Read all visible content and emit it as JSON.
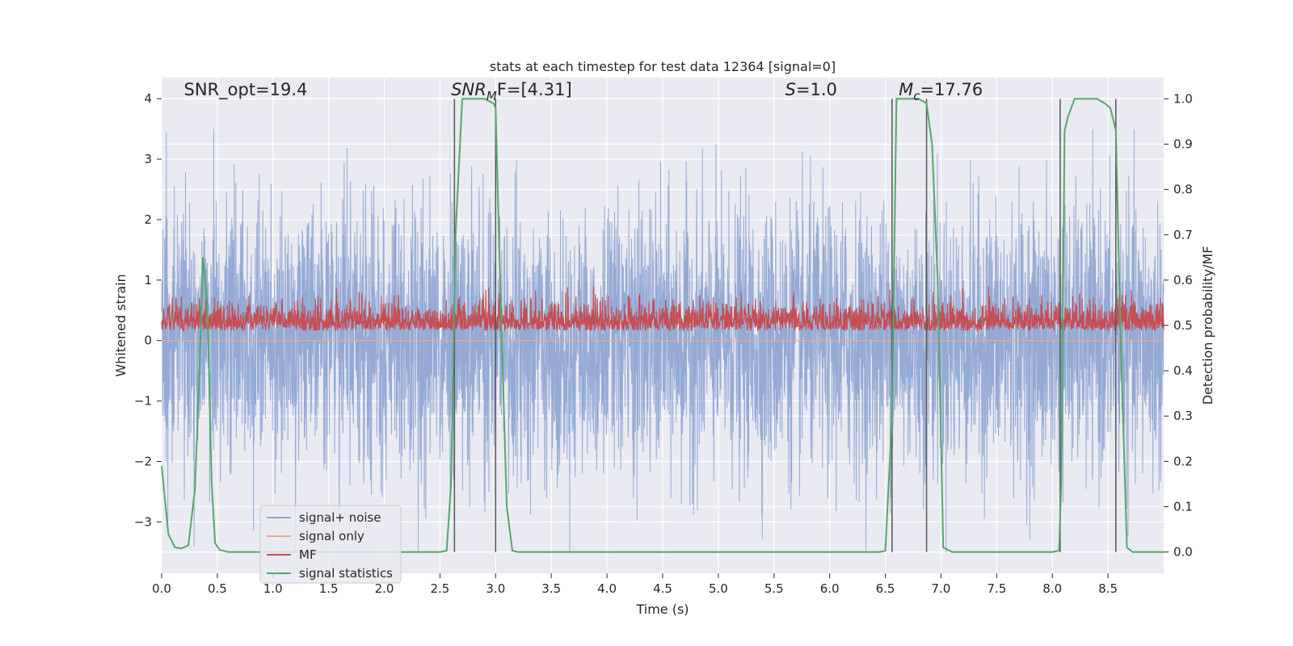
{
  "chart_data": {
    "type": "line",
    "title": "stats at each timestep for test data 12364 [signal=0]",
    "xlabel": "Time (s)",
    "ylabel": "Whitened strain",
    "y2label": "Detection probability/MF",
    "xlim": [
      0.0,
      9.0
    ],
    "ylim": [
      -3.85,
      4.35
    ],
    "y2lim": [
      -0.047,
      1.047
    ],
    "xticks": [
      0.0,
      0.5,
      1.0,
      1.5,
      2.0,
      2.5,
      3.0,
      3.5,
      4.0,
      4.5,
      5.0,
      5.5,
      6.0,
      6.5,
      7.0,
      7.5,
      8.0,
      8.5
    ],
    "xtick_labels": [
      "0.0",
      "0.5",
      "1.0",
      "1.5",
      "2.0",
      "2.5",
      "3.0",
      "3.5",
      "4.0",
      "4.5",
      "5.0",
      "5.5",
      "6.0",
      "6.5",
      "7.0",
      "7.5",
      "8.0",
      "8.5"
    ],
    "yticks": [
      -3,
      -2,
      -1,
      0,
      1,
      2,
      3,
      4
    ],
    "ytick_labels": [
      "−3",
      "−2",
      "−1",
      "0",
      "1",
      "2",
      "3",
      "4"
    ],
    "y2ticks": [
      0.0,
      0.1,
      0.2,
      0.3,
      0.4,
      0.5,
      0.6,
      0.7,
      0.8,
      0.9,
      1.0
    ],
    "y2tick_labels": [
      "0.0",
      "0.1",
      "0.2",
      "0.3",
      "0.4",
      "0.5",
      "0.6",
      "0.7",
      "0.8",
      "0.9",
      "1.0"
    ],
    "grid": true,
    "legend_placement": "lower-left",
    "annotations": [
      {
        "id": "snr-opt",
        "text": "SNR_opt=19.4",
        "x": 0.2,
        "y2": 1.01
      },
      {
        "id": "snr-mf",
        "text": "SNR_MF=[4.31]",
        "parts": {
          "main": "SNR",
          "sub": "M",
          "tail": "F=[4.31]"
        },
        "x": 2.6,
        "y2": 1.01
      },
      {
        "id": "s-value",
        "text": "S=1.0",
        "parts": {
          "main": "S",
          "tail": "=1.0"
        },
        "x": 5.6,
        "y2": 1.01
      },
      {
        "id": "mc-value",
        "text": "M_c=17.76",
        "parts": {
          "main": "M",
          "sub": "c",
          "tail": "=17.76"
        },
        "x": 6.62,
        "y2": 1.01
      }
    ],
    "vertical_markers": [
      2.63,
      3.0,
      6.56,
      6.87,
      8.07,
      8.57
    ],
    "series": [
      {
        "name": "signal+ noise",
        "color": "#8fa6d3",
        "axis": "left",
        "kind": "noise",
        "amplitude": 1.15,
        "peak_max": 3.5,
        "peak_min": -3.5
      },
      {
        "name": "signal only",
        "color": "#eba98a",
        "axis": "left",
        "kind": "flat",
        "value": 0.0
      },
      {
        "name": "MF",
        "color": "#c44e52",
        "axis": "right",
        "kind": "noise-band",
        "center": 0.5,
        "low": 0.47,
        "high": 0.58,
        "peak_max": 0.6
      },
      {
        "name": "signal statistics",
        "color": "#55a868",
        "axis": "right",
        "kind": "line",
        "x": [
          0.0,
          0.06,
          0.12,
          0.18,
          0.24,
          0.3,
          0.34,
          0.37,
          0.41,
          0.45,
          0.48,
          0.52,
          0.6,
          1.0,
          2.0,
          2.5,
          2.56,
          2.6,
          2.64,
          2.7,
          2.8,
          2.9,
          2.98,
          3.0,
          3.04,
          3.1,
          3.15,
          3.2,
          4.0,
          5.0,
          6.0,
          6.45,
          6.5,
          6.56,
          6.6,
          6.7,
          6.8,
          6.87,
          6.92,
          6.97,
          7.02,
          7.1,
          7.5,
          8.0,
          8.06,
          8.08,
          8.11,
          8.14,
          8.2,
          8.3,
          8.4,
          8.47,
          8.52,
          8.57,
          8.61,
          8.67,
          8.72,
          8.8,
          9.0
        ],
        "y": [
          0.19,
          0.04,
          0.01,
          0.008,
          0.015,
          0.14,
          0.4,
          0.65,
          0.55,
          0.15,
          0.02,
          0.005,
          0.0,
          0.0,
          0.0,
          0.0,
          0.003,
          0.15,
          0.7,
          1.0,
          1.0,
          1.0,
          0.99,
          0.98,
          0.6,
          0.1,
          0.003,
          0.0,
          0.0,
          0.0,
          0.0,
          0.0,
          0.003,
          0.3,
          1.0,
          1.0,
          1.0,
          0.99,
          0.9,
          0.6,
          0.01,
          0.0,
          0.0,
          0.0,
          0.003,
          0.15,
          0.93,
          0.96,
          1.0,
          1.0,
          1.0,
          0.99,
          0.98,
          0.93,
          0.5,
          0.01,
          0.0,
          0.0,
          0.0
        ]
      }
    ]
  }
}
